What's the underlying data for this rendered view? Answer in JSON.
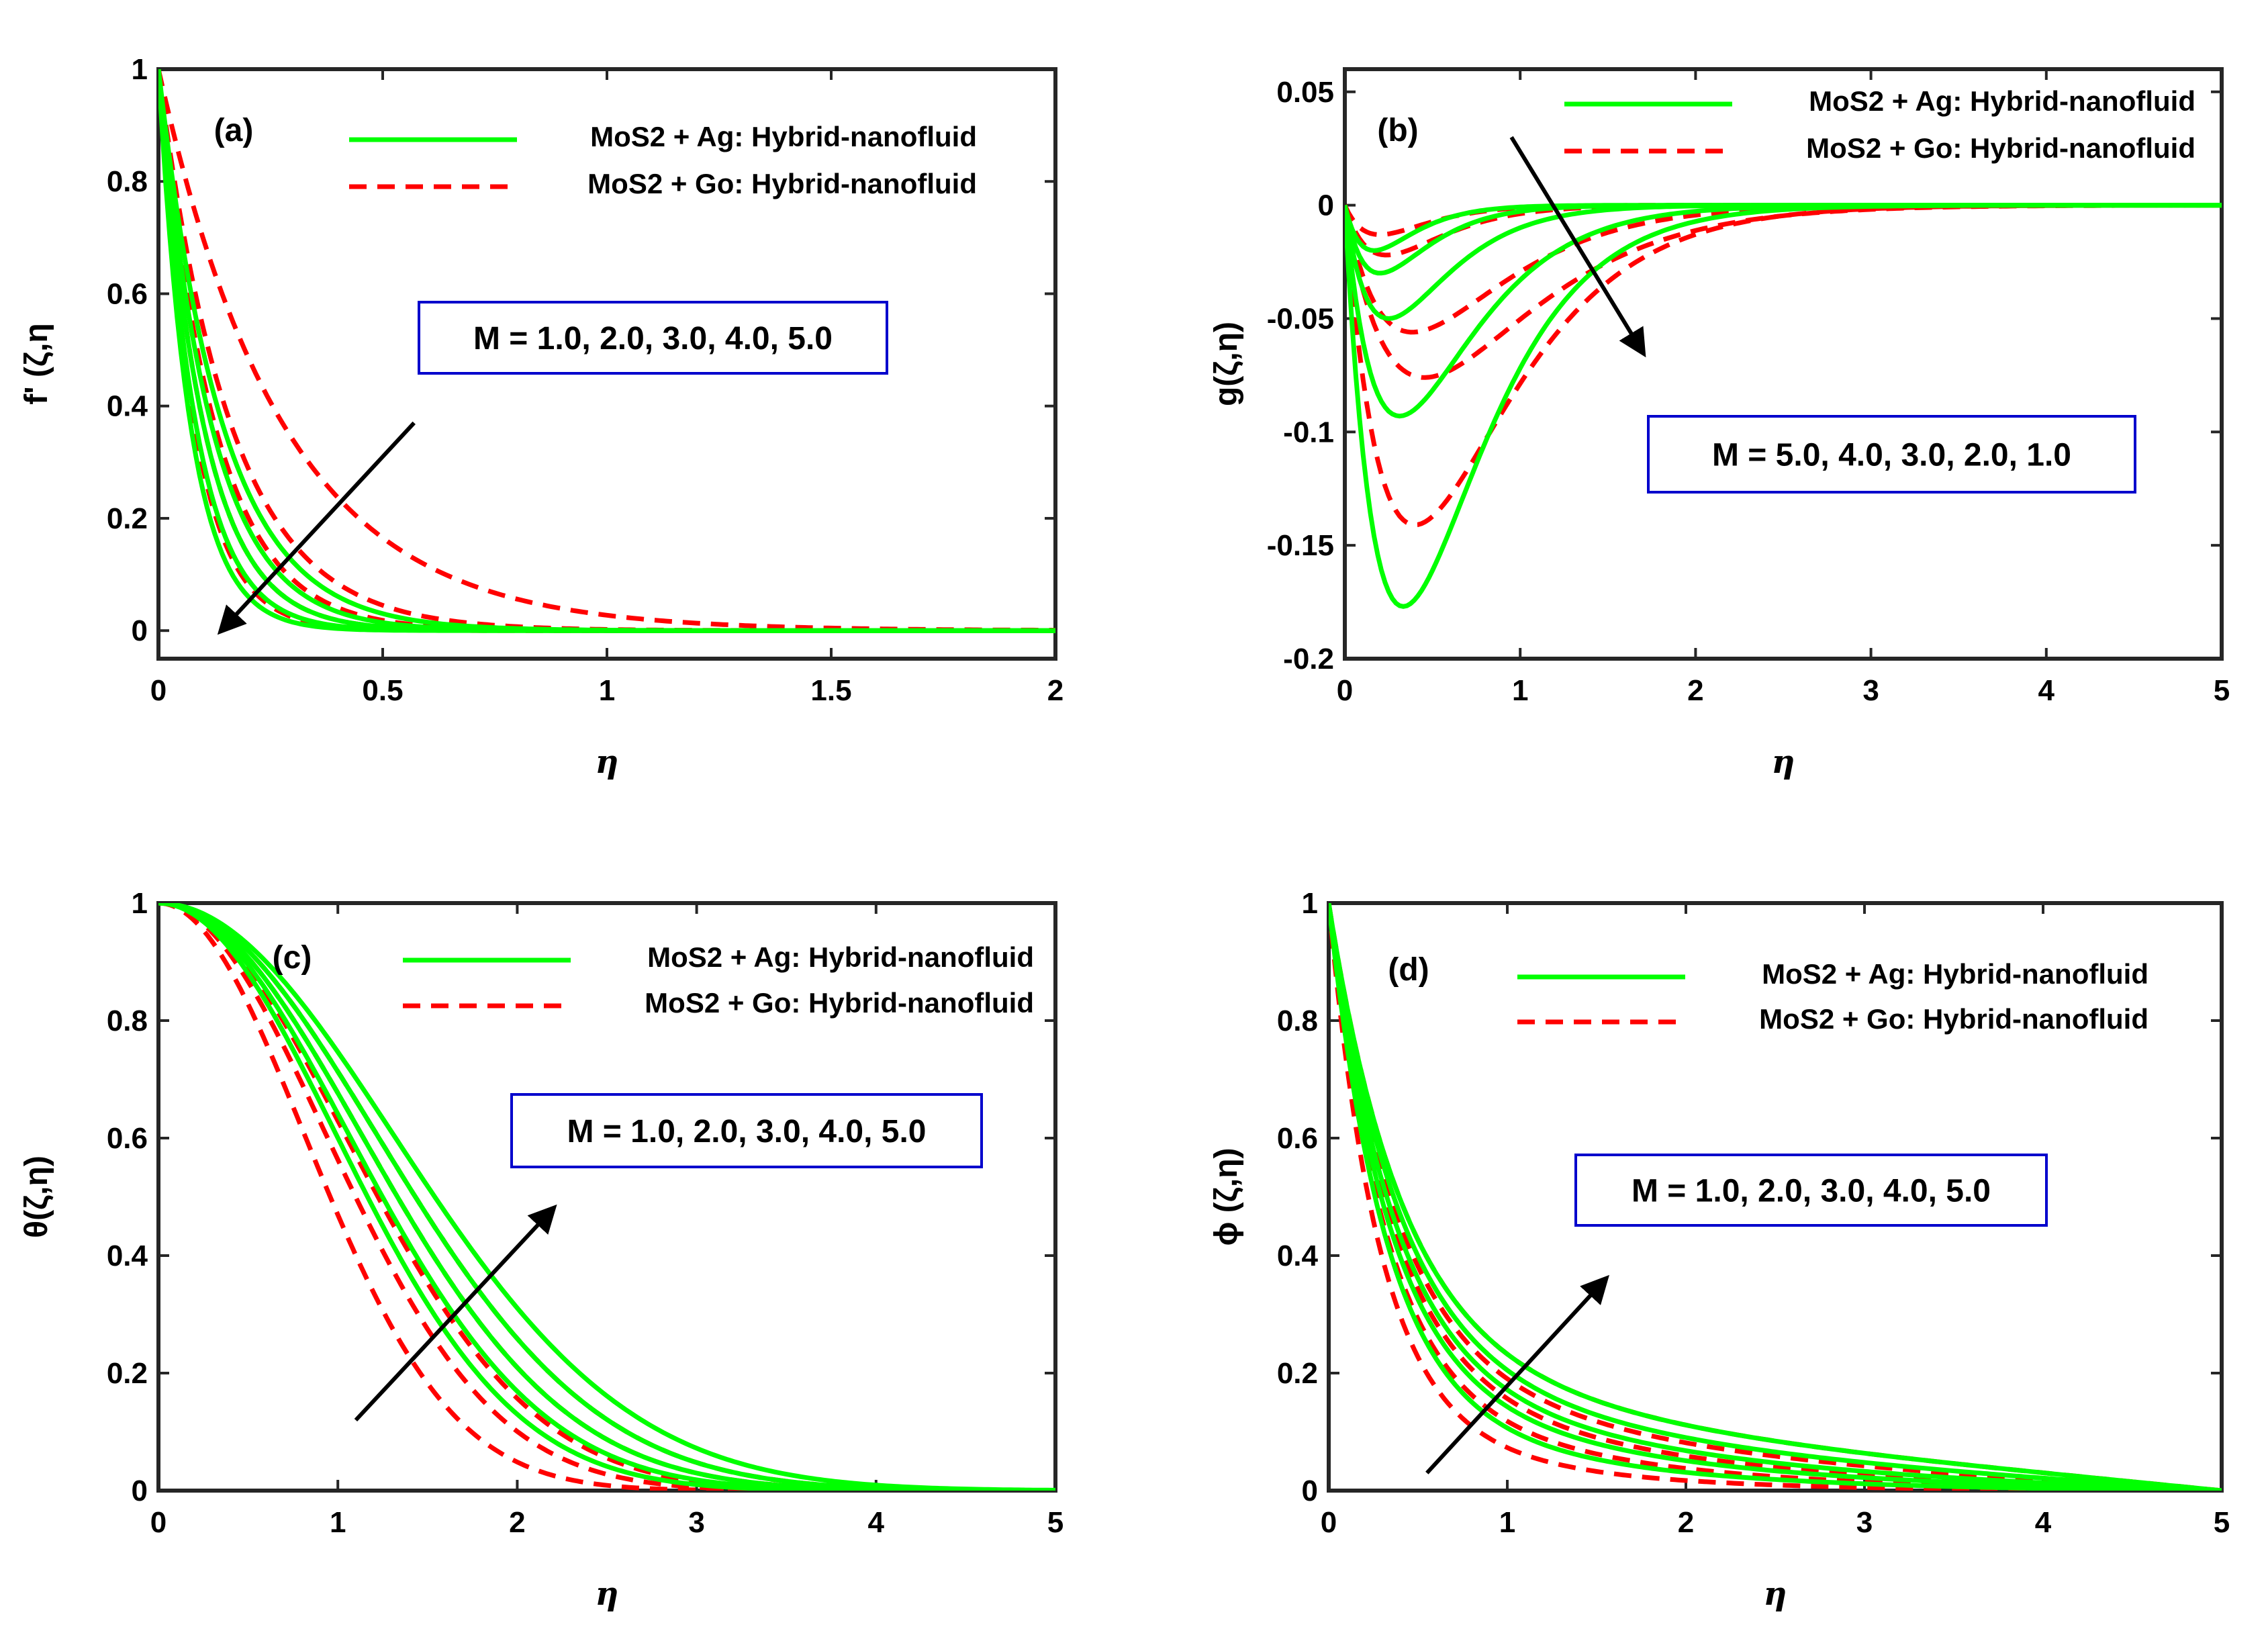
{
  "figure": {
    "panels": 4,
    "legend": {
      "ag_label": "MoS2 + Ag: Hybrid-nanofluid",
      "go_label": "MoS2 + Go: Hybrid-nanofluid",
      "ag_color": "#00ff00",
      "go_color": "#ff0000"
    }
  },
  "chart_data": [
    {
      "type": "line",
      "panel": "(a)",
      "ylabel": "f' (ζ,η",
      "xlabel": "η",
      "xlim": [
        0,
        2
      ],
      "ylim": [
        -0.05,
        1
      ],
      "xticks": [
        0,
        0.5,
        1,
        1.5,
        2
      ],
      "xtick_labels": [
        "0",
        "0.5",
        "1",
        "1.5",
        "2"
      ],
      "yticks": [
        0,
        0.2,
        0.4,
        0.6,
        0.8,
        1
      ],
      "ytick_labels": [
        "0",
        "0.2",
        "0.4",
        "0.6",
        "0.8",
        "1"
      ],
      "annotation": "M = 1.0, 2.0, 3.0, 4.0, 5.0",
      "model": "exp",
      "arrow": {
        "from": [
          0.57,
          0.37
        ],
        "to": [
          0.14,
          0.0
        ]
      },
      "series_ag": [
        {
          "name": "M=1.0",
          "k": 7.0
        },
        {
          "name": "M=2.0",
          "k": 8.5
        },
        {
          "name": "M=3.0",
          "k": 10.0
        },
        {
          "name": "M=4.0",
          "k": 12.0
        },
        {
          "name": "M=5.0",
          "k": 14.0
        }
      ],
      "series_go": [
        {
          "name": "M=1.0",
          "k": 3.6
        },
        {
          "name": "M=2.0",
          "k": 6.2
        },
        {
          "name": "M=3.0",
          "k": 8.0
        },
        {
          "name": "M=4.0",
          "k": 10.0
        },
        {
          "name": "M=5.0",
          "k": 12.5
        }
      ]
    },
    {
      "type": "line",
      "panel": "(b)",
      "ylabel": "g(ζ,η)",
      "xlabel": "η",
      "xlim": [
        0,
        5
      ],
      "ylim": [
        -0.2,
        0.06
      ],
      "xticks": [
        0,
        1,
        2,
        3,
        4,
        5
      ],
      "xtick_labels": [
        "0",
        "1",
        "2",
        "3",
        "4",
        "5"
      ],
      "yticks": [
        -0.2,
        -0.15,
        -0.1,
        -0.05,
        0,
        0.05
      ],
      "ytick_labels": [
        "-0.2",
        "-0.15",
        "-0.1",
        "-0.05",
        "0",
        "0.05"
      ],
      "annotation": "M = 5.0, 4.0, 3.0, 2.0, 1.0",
      "model": "dip",
      "arrow": {
        "from": [
          0.95,
          0.03
        ],
        "to": [
          1.7,
          -0.065
        ]
      },
      "series_ag": [
        {
          "name": "M=5.0",
          "depth": 0.02,
          "k": 6.0
        },
        {
          "name": "M=4.0",
          "depth": 0.03,
          "k": 5.0
        },
        {
          "name": "M=3.0",
          "depth": 0.05,
          "k": 4.0
        },
        {
          "name": "M=2.0",
          "depth": 0.093,
          "k": 3.2
        },
        {
          "name": "M=1.0",
          "depth": 0.177,
          "k": 3.0
        }
      ],
      "series_go": [
        {
          "name": "M=5.0",
          "depth": 0.013,
          "k": 5.0
        },
        {
          "name": "M=4.0",
          "depth": 0.022,
          "k": 4.2
        },
        {
          "name": "M=3.0",
          "depth": 0.056,
          "k": 2.6
        },
        {
          "name": "M=2.0",
          "depth": 0.076,
          "k": 2.2
        },
        {
          "name": "M=1.0",
          "depth": 0.141,
          "k": 2.5
        }
      ]
    },
    {
      "type": "line",
      "panel": "(c)",
      "ylabel": "θ(ζ,η)",
      "xlabel": "η",
      "xlim": [
        0,
        5
      ],
      "ylim": [
        0,
        1
      ],
      "xticks": [
        0,
        1,
        2,
        3,
        4,
        5
      ],
      "xtick_labels": [
        "0",
        "1",
        "2",
        "3",
        "4",
        "5"
      ],
      "yticks": [
        0,
        0.2,
        0.4,
        0.6,
        0.8,
        1
      ],
      "ytick_labels": [
        "0",
        "0.2",
        "0.4",
        "0.6",
        "0.8",
        "1"
      ],
      "annotation": "M = 1.0, 2.0, 3.0, 4.0, 5.0",
      "model": "gauss",
      "arrow": {
        "from": [
          1.1,
          0.12
        ],
        "to": [
          2.2,
          0.48
        ]
      },
      "series_ag": [
        {
          "name": "M=1.0",
          "s": 1.4
        },
        {
          "name": "M=2.0",
          "s": 1.5
        },
        {
          "name": "M=3.0",
          "s": 1.6
        },
        {
          "name": "M=4.0",
          "s": 1.72
        },
        {
          "name": "M=5.0",
          "s": 1.85
        }
      ],
      "series_go": [
        {
          "name": "M=1.0",
          "s": 1.15
        },
        {
          "name": "M=2.0",
          "s": 1.32
        },
        {
          "name": "M=3.0",
          "s": 1.47
        },
        {
          "name": "M=4.0",
          "s": 1.6
        },
        {
          "name": "M=5.0",
          "s": 1.72
        }
      ]
    },
    {
      "type": "line",
      "panel": "(d)",
      "ylabel": "ϕ (ζ,η)",
      "xlabel": "η",
      "xlim": [
        0,
        5
      ],
      "ylim": [
        0,
        1
      ],
      "xticks": [
        0,
        1,
        2,
        3,
        4,
        5
      ],
      "xtick_labels": [
        "0",
        "1",
        "2",
        "3",
        "4",
        "5"
      ],
      "yticks": [
        0,
        0.2,
        0.4,
        0.6,
        0.8,
        1
      ],
      "ytick_labels": [
        "0",
        "0.2",
        "0.4",
        "0.6",
        "0.8",
        "1"
      ],
      "annotation": "M = 1.0, 2.0, 3.0, 4.0, 5.0",
      "model": "biexp",
      "arrow": {
        "from": [
          0.55,
          0.03
        ],
        "to": [
          1.55,
          0.36
        ]
      },
      "series_ag": [
        {
          "name": "M=1.0",
          "a": 0.82,
          "k1": 3.2,
          "k2": 0.9
        },
        {
          "name": "M=2.0",
          "a": 0.78,
          "k1": 3.0,
          "k2": 0.75
        },
        {
          "name": "M=3.0",
          "a": 0.76,
          "k1": 2.8,
          "k2": 0.65
        },
        {
          "name": "M=4.0",
          "a": 0.74,
          "k1": 2.6,
          "k2": 0.55
        },
        {
          "name": "M=5.0",
          "a": 0.72,
          "k1": 2.5,
          "k2": 0.48
        }
      ],
      "series_go": [
        {
          "name": "M=1.0",
          "a": 0.85,
          "k1": 3.6,
          "k2": 1.1
        },
        {
          "name": "M=2.0",
          "a": 0.8,
          "k1": 3.2,
          "k2": 0.85
        },
        {
          "name": "M=3.0",
          "a": 0.77,
          "k1": 2.9,
          "k2": 0.7
        },
        {
          "name": "M=4.0",
          "a": 0.75,
          "k1": 2.7,
          "k2": 0.58
        },
        {
          "name": "M=5.0",
          "a": 0.72,
          "k1": 2.5,
          "k2": 0.48
        }
      ]
    }
  ]
}
